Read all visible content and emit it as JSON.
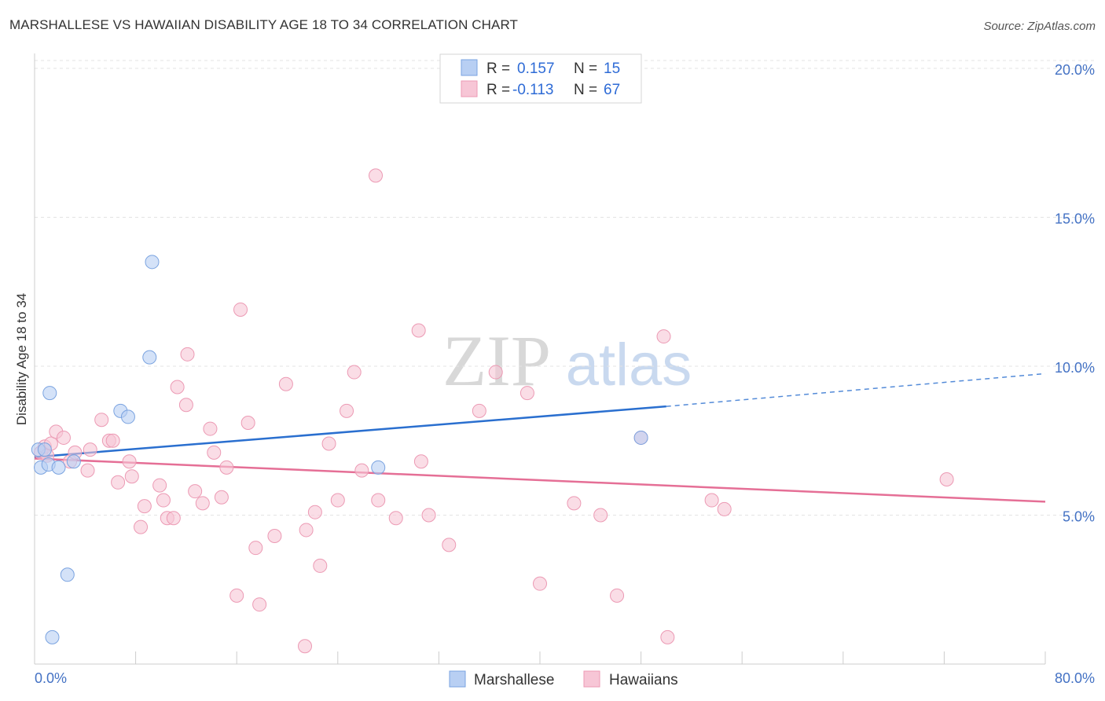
{
  "title": "MARSHALLESE VS HAWAIIAN DISABILITY AGE 18 TO 34 CORRELATION CHART",
  "source": "Source: ZipAtlas.com",
  "watermark": {
    "zip": "ZIP",
    "atlas": "atlas"
  },
  "colors": {
    "blue_fill": "#b8cff3",
    "blue_stroke": "#7aa3e0",
    "blue_line": "#2a6fcf",
    "pink_fill": "#f7c6d6",
    "pink_stroke": "#ec9ab4",
    "pink_line": "#e56f96",
    "axis_text": "#4472c4"
  },
  "legend": {
    "rows": [
      {
        "r_label": "R =",
        "r_value": "0.157",
        "n_label": "N =",
        "n_value": "15"
      },
      {
        "r_label": "R =",
        "r_value": "-0.113",
        "n_label": "N =",
        "n_value": "67"
      }
    ]
  },
  "chart_data": {
    "type": "scatter",
    "title": "MARSHALLESE VS HAWAIIAN DISABILITY AGE 18 TO 34 CORRELATION CHART",
    "xlabel": "",
    "ylabel": "Disability Age 18 to 34",
    "xlim": [
      0,
      80
    ],
    "ylim": [
      0,
      20.5
    ],
    "x_tick_labels": [
      "0.0%",
      "80.0%"
    ],
    "y_ticks": [
      5,
      10,
      15,
      20
    ],
    "y_tick_labels": [
      "5.0%",
      "10.0%",
      "15.0%",
      "20.0%"
    ],
    "series": [
      {
        "name": "Marshallese",
        "r": 0.157,
        "n": 15,
        "points": [
          [
            0.3,
            7.2
          ],
          [
            0.5,
            6.6
          ],
          [
            0.8,
            7.2
          ],
          [
            1.1,
            6.7
          ],
          [
            1.2,
            9.1
          ],
          [
            1.4,
            0.9
          ],
          [
            1.9,
            6.6
          ],
          [
            2.6,
            3.0
          ],
          [
            3.1,
            6.8
          ],
          [
            6.8,
            8.5
          ],
          [
            7.4,
            8.3
          ],
          [
            9.1,
            10.3
          ],
          [
            9.3,
            13.5
          ],
          [
            27.2,
            6.6
          ],
          [
            48.0,
            7.6
          ]
        ],
        "trend": {
          "x0": 0,
          "y0": 6.95,
          "x1": 50,
          "y1": 8.65,
          "dash_to_x": 80,
          "dash_to_y": 9.75
        }
      },
      {
        "name": "Hawaiians",
        "r": -0.113,
        "n": 67,
        "points": [
          [
            0.5,
            7.1
          ],
          [
            0.8,
            7.3
          ],
          [
            1.0,
            7.0
          ],
          [
            1.3,
            7.4
          ],
          [
            1.7,
            7.8
          ],
          [
            2.3,
            7.6
          ],
          [
            2.8,
            6.8
          ],
          [
            3.2,
            7.1
          ],
          [
            4.2,
            6.5
          ],
          [
            4.4,
            7.2
          ],
          [
            5.3,
            8.2
          ],
          [
            5.9,
            7.5
          ],
          [
            6.2,
            7.5
          ],
          [
            6.6,
            6.1
          ],
          [
            7.5,
            6.8
          ],
          [
            7.7,
            6.3
          ],
          [
            8.4,
            4.6
          ],
          [
            8.7,
            5.3
          ],
          [
            9.9,
            6.0
          ],
          [
            10.2,
            5.5
          ],
          [
            10.5,
            4.9
          ],
          [
            11.0,
            4.9
          ],
          [
            11.3,
            9.3
          ],
          [
            12.0,
            8.7
          ],
          [
            12.1,
            10.4
          ],
          [
            12.7,
            5.8
          ],
          [
            13.3,
            5.4
          ],
          [
            13.9,
            7.9
          ],
          [
            14.2,
            7.1
          ],
          [
            14.8,
            5.6
          ],
          [
            15.2,
            6.6
          ],
          [
            16.0,
            2.3
          ],
          [
            16.3,
            11.9
          ],
          [
            16.9,
            8.1
          ],
          [
            17.5,
            3.9
          ],
          [
            17.8,
            2.0
          ],
          [
            19.0,
            4.3
          ],
          [
            19.9,
            9.4
          ],
          [
            21.4,
            0.6
          ],
          [
            21.5,
            4.5
          ],
          [
            22.2,
            5.1
          ],
          [
            22.6,
            3.3
          ],
          [
            23.3,
            7.4
          ],
          [
            24.0,
            5.5
          ],
          [
            24.7,
            8.5
          ],
          [
            25.3,
            9.8
          ],
          [
            25.9,
            6.5
          ],
          [
            27.0,
            16.4
          ],
          [
            27.2,
            5.5
          ],
          [
            28.6,
            4.9
          ],
          [
            30.4,
            11.2
          ],
          [
            30.6,
            6.8
          ],
          [
            31.2,
            5.0
          ],
          [
            32.8,
            4.0
          ],
          [
            35.2,
            8.5
          ],
          [
            36.5,
            9.8
          ],
          [
            39.0,
            9.1
          ],
          [
            40.0,
            2.7
          ],
          [
            42.7,
            5.4
          ],
          [
            44.8,
            5.0
          ],
          [
            46.1,
            2.3
          ],
          [
            48.0,
            7.6
          ],
          [
            49.8,
            11.0
          ],
          [
            50.1,
            0.9
          ],
          [
            53.6,
            5.5
          ],
          [
            54.6,
            5.2
          ],
          [
            72.2,
            6.2
          ]
        ],
        "trend": {
          "x0": 0,
          "y0": 6.9,
          "x1": 80,
          "y1": 5.45
        }
      }
    ],
    "legend_position": "top-center",
    "bottom_legend": [
      "Marshallese",
      "Hawaiians"
    ]
  }
}
